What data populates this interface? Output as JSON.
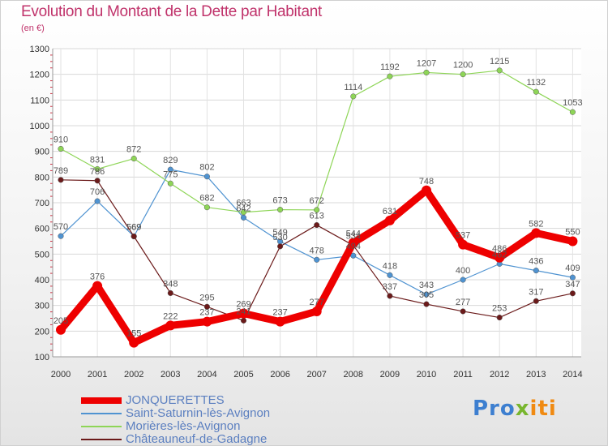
{
  "chart_data": {
    "type": "line",
    "title": "Evolution du Montant de la Dette par Habitant",
    "unit": "(en €)",
    "x": [
      "2000",
      "2001",
      "2002",
      "2003",
      "2004",
      "2005",
      "2006",
      "2007",
      "2008",
      "2009",
      "2010",
      "2011",
      "2012",
      "2013",
      "2014"
    ],
    "ylim": [
      100,
      1300
    ],
    "yticks": [
      100,
      200,
      300,
      400,
      500,
      600,
      700,
      800,
      900,
      1000,
      1100,
      1200,
      1300
    ],
    "grid": true,
    "legend_position": "bottom-left",
    "series": [
      {
        "name": "JONQUERETTES",
        "color": "#ee0000",
        "values": [
          205,
          376,
          155,
          222,
          237,
          269,
          237,
          277,
          544,
          631,
          748,
          537,
          486,
          582,
          550
        ]
      },
      {
        "name": "Saint-Saturnin-lès-Avignon",
        "color": "#4f93d1",
        "values": [
          570,
          706,
          569,
          829,
          802,
          642,
          549,
          478,
          494,
          418,
          343,
          400,
          462,
          436,
          409
        ]
      },
      {
        "name": "Morières-lès-Avignon",
        "color": "#8ed557",
        "values": [
          910,
          831,
          872,
          775,
          682,
          663,
          673,
          672,
          1114,
          1192,
          1207,
          1200,
          1215,
          1132,
          1053
        ]
      },
      {
        "name": "Châteauneuf-de-Gadagne",
        "color": "#6b1a1a",
        "values": [
          789,
          786,
          569,
          348,
          295,
          241,
          530,
          613,
          534,
          337,
          305,
          277,
          253,
          317,
          347
        ]
      }
    ]
  },
  "logo": {
    "part1": "Pro",
    "part2": "x",
    "part3": "iti"
  }
}
